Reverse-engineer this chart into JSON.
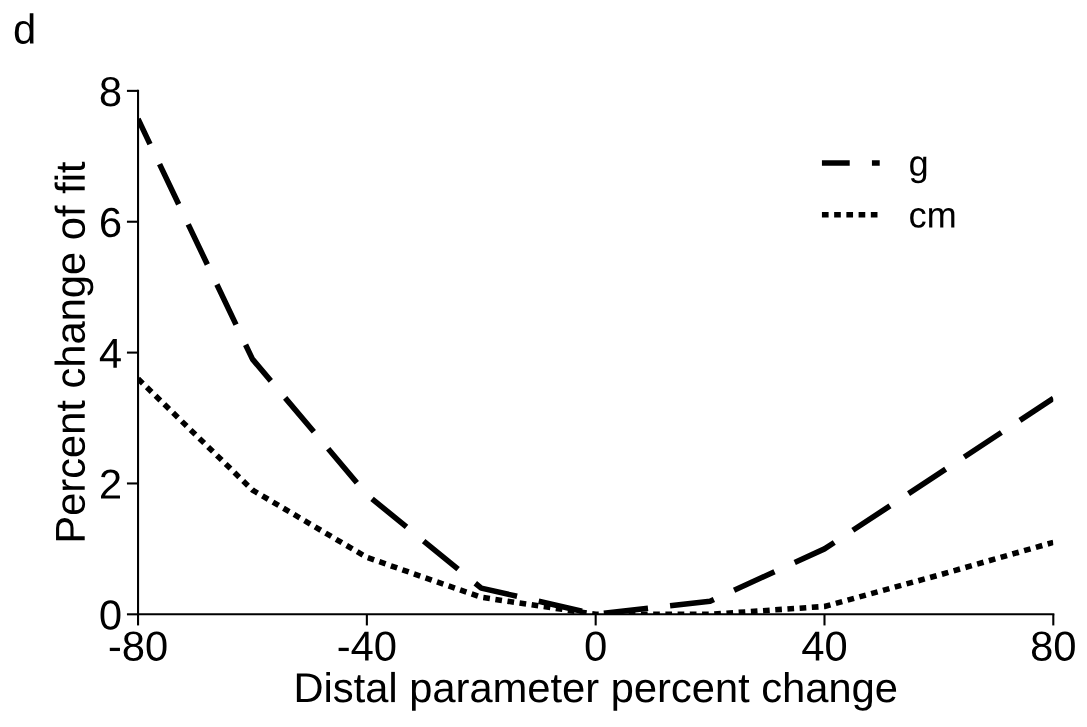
{
  "chart_data": {
    "type": "line",
    "xlabel": "Distal parameter percent change",
    "ylabel": "Percent change of fit",
    "annotations": [
      "d"
    ],
    "x": [
      -80,
      -60,
      -40,
      -20,
      0,
      20,
      40,
      60,
      80
    ],
    "series": [
      {
        "name": "g",
        "color": "#000000",
        "line_style": "dashed",
        "values": [
          7.57,
          3.9,
          1.83,
          0.4,
          0,
          0.2,
          1.0,
          2.15,
          3.3
        ]
      },
      {
        "name": "cm",
        "color": "#000000",
        "line_style": "dotted",
        "values": [
          3.6,
          1.9,
          0.87,
          0.26,
          0,
          0,
          0.12,
          0.6,
          1.1
        ]
      }
    ],
    "xlim": [
      -80,
      80
    ],
    "xticks": [
      -80,
      -40,
      0,
      40,
      80
    ],
    "ylim": [
      0,
      8
    ],
    "yticks": [
      0,
      2,
      4,
      6,
      8
    ],
    "grid": false,
    "legend": "top right",
    "marker": "none"
  }
}
